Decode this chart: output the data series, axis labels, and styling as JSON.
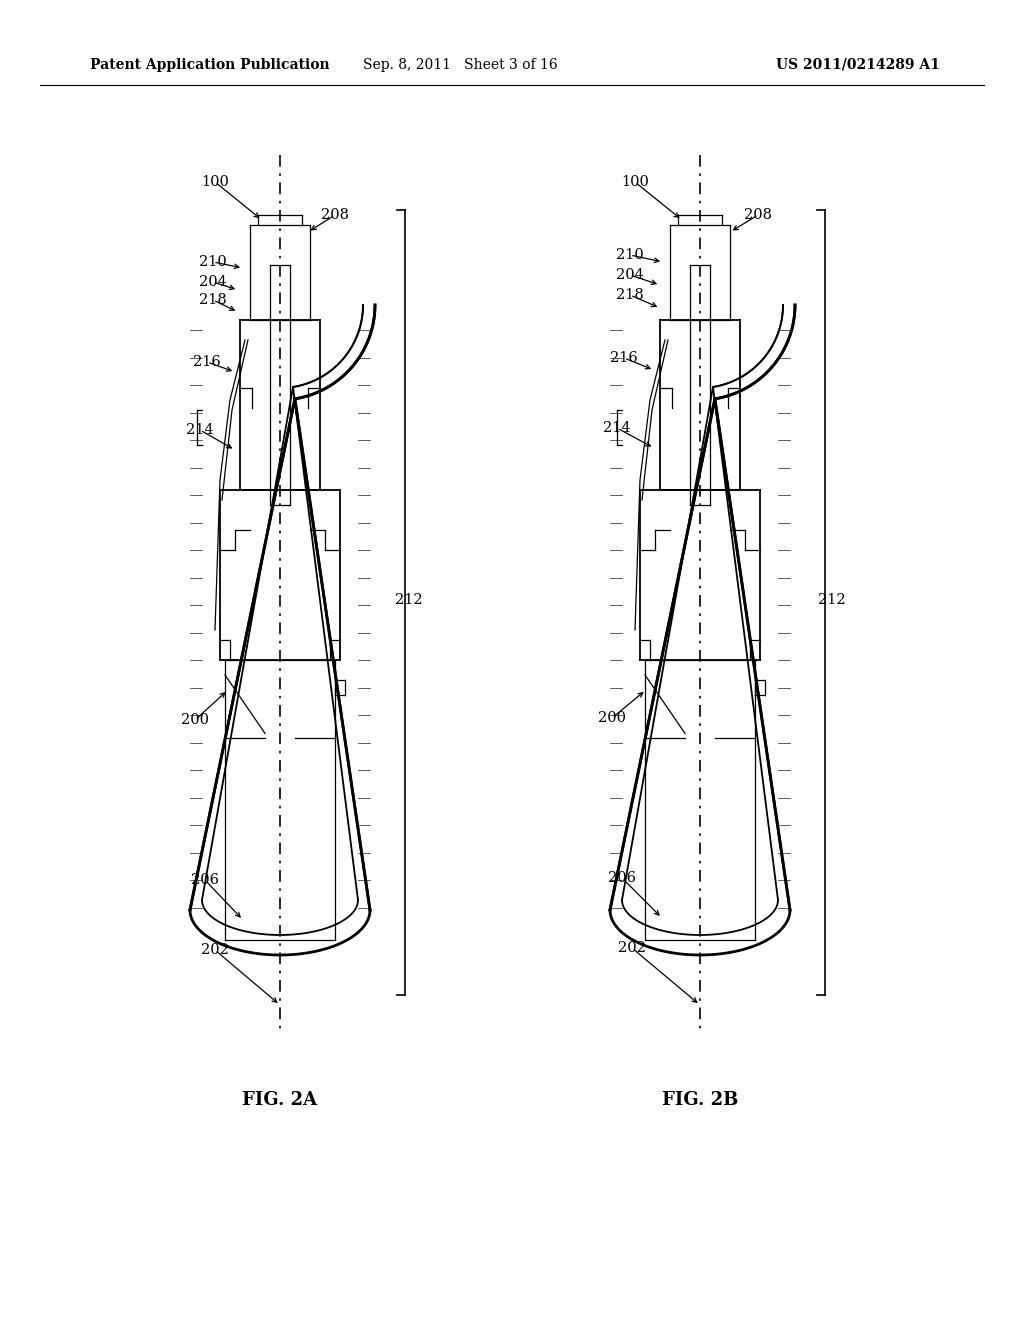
{
  "header_left": "Patent Application Publication",
  "header_mid": "Sep. 8, 2011   Sheet 3 of 16",
  "header_right": "US 2011/0214289 A1",
  "fig_a_label": "FIG. 2A",
  "fig_b_label": "FIG. 2B",
  "background_color": "#ffffff",
  "line_color": "#000000",
  "header_fontsize": 10,
  "label_fontsize": 10.5,
  "fig_label_fontsize": 13
}
